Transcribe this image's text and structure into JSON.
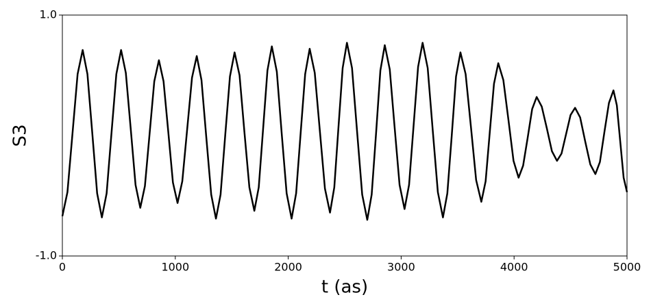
{
  "chart_data": {
    "type": "line",
    "xlabel": "t (as)",
    "ylabel": "S3",
    "xlim": [
      0,
      5000
    ],
    "ylim": [
      -1.0,
      1.0
    ],
    "xticks": [
      0,
      1000,
      2000,
      3000,
      4000,
      5000
    ],
    "yticks": [
      {
        "value": -1.0,
        "label": "-1.0"
      },
      {
        "value": 1.0,
        "label": "1.0"
      }
    ],
    "grid": false,
    "series": [
      {
        "color": "#000000",
        "x": [
          0,
          45,
          90,
          135,
          180,
          222,
          265,
          308,
          350,
          392,
          435,
          478,
          520,
          562,
          605,
          648,
          690,
          731,
          772,
          814,
          855,
          896,
          938,
          979,
          1020,
          1062,
          1105,
          1148,
          1190,
          1232,
          1275,
          1318,
          1360,
          1401,
          1442,
          1484,
          1525,
          1569,
          1612,
          1656,
          1700,
          1739,
          1778,
          1816,
          1855,
          1899,
          1942,
          1986,
          2030,
          2070,
          2110,
          2150,
          2190,
          2235,
          2280,
          2325,
          2370,
          2408,
          2445,
          2482,
          2520,
          2565,
          2610,
          2655,
          2700,
          2739,
          2778,
          2816,
          2855,
          2899,
          2942,
          2986,
          3030,
          3070,
          3110,
          3150,
          3190,
          3235,
          3280,
          3325,
          3370,
          3409,
          3448,
          3486,
          3525,
          3571,
          3618,
          3664,
          3710,
          3748,
          3785,
          3822,
          3860,
          3905,
          3950,
          3995,
          4040,
          4080,
          4120,
          4160,
          4200,
          4245,
          4290,
          4335,
          4380,
          4420,
          4460,
          4500,
          4540,
          4585,
          4630,
          4675,
          4720,
          4760,
          4800,
          4840,
          4880,
          4910,
          4940,
          4970,
          5000
        ],
        "values": [
          -0.67,
          -0.47,
          0.02,
          0.51,
          0.71,
          0.51,
          0.02,
          -0.48,
          -0.68,
          -0.48,
          0.02,
          0.51,
          0.71,
          0.52,
          0.06,
          -0.41,
          -0.6,
          -0.42,
          0.01,
          0.45,
          0.625,
          0.45,
          0.03,
          -0.39,
          -0.56,
          -0.38,
          0.05,
          0.48,
          0.66,
          0.46,
          -0.02,
          -0.49,
          -0.69,
          -0.49,
          0.0,
          0.49,
          0.69,
          0.5,
          0.03,
          -0.43,
          -0.625,
          -0.43,
          0.06,
          0.54,
          0.74,
          0.53,
          0.02,
          -0.48,
          -0.69,
          -0.48,
          0.02,
          0.51,
          0.72,
          0.52,
          0.04,
          -0.44,
          -0.64,
          -0.43,
          0.07,
          0.56,
          0.77,
          0.56,
          0.03,
          -0.49,
          -0.7,
          -0.49,
          0.02,
          0.54,
          0.75,
          0.55,
          0.07,
          -0.41,
          -0.61,
          -0.41,
          0.08,
          0.57,
          0.77,
          0.56,
          0.04,
          -0.47,
          -0.68,
          -0.48,
          0.0,
          0.49,
          0.69,
          0.51,
          0.07,
          -0.37,
          -0.55,
          -0.38,
          0.03,
          0.43,
          0.6,
          0.46,
          0.13,
          -0.21,
          -0.35,
          -0.25,
          -0.02,
          0.22,
          0.32,
          0.24,
          0.06,
          -0.13,
          -0.21,
          -0.15,
          0.01,
          0.17,
          0.23,
          0.15,
          -0.05,
          -0.24,
          -0.32,
          -0.22,
          0.03,
          0.27,
          0.375,
          0.25,
          -0.05,
          -0.35,
          -0.47
        ]
      }
    ]
  }
}
